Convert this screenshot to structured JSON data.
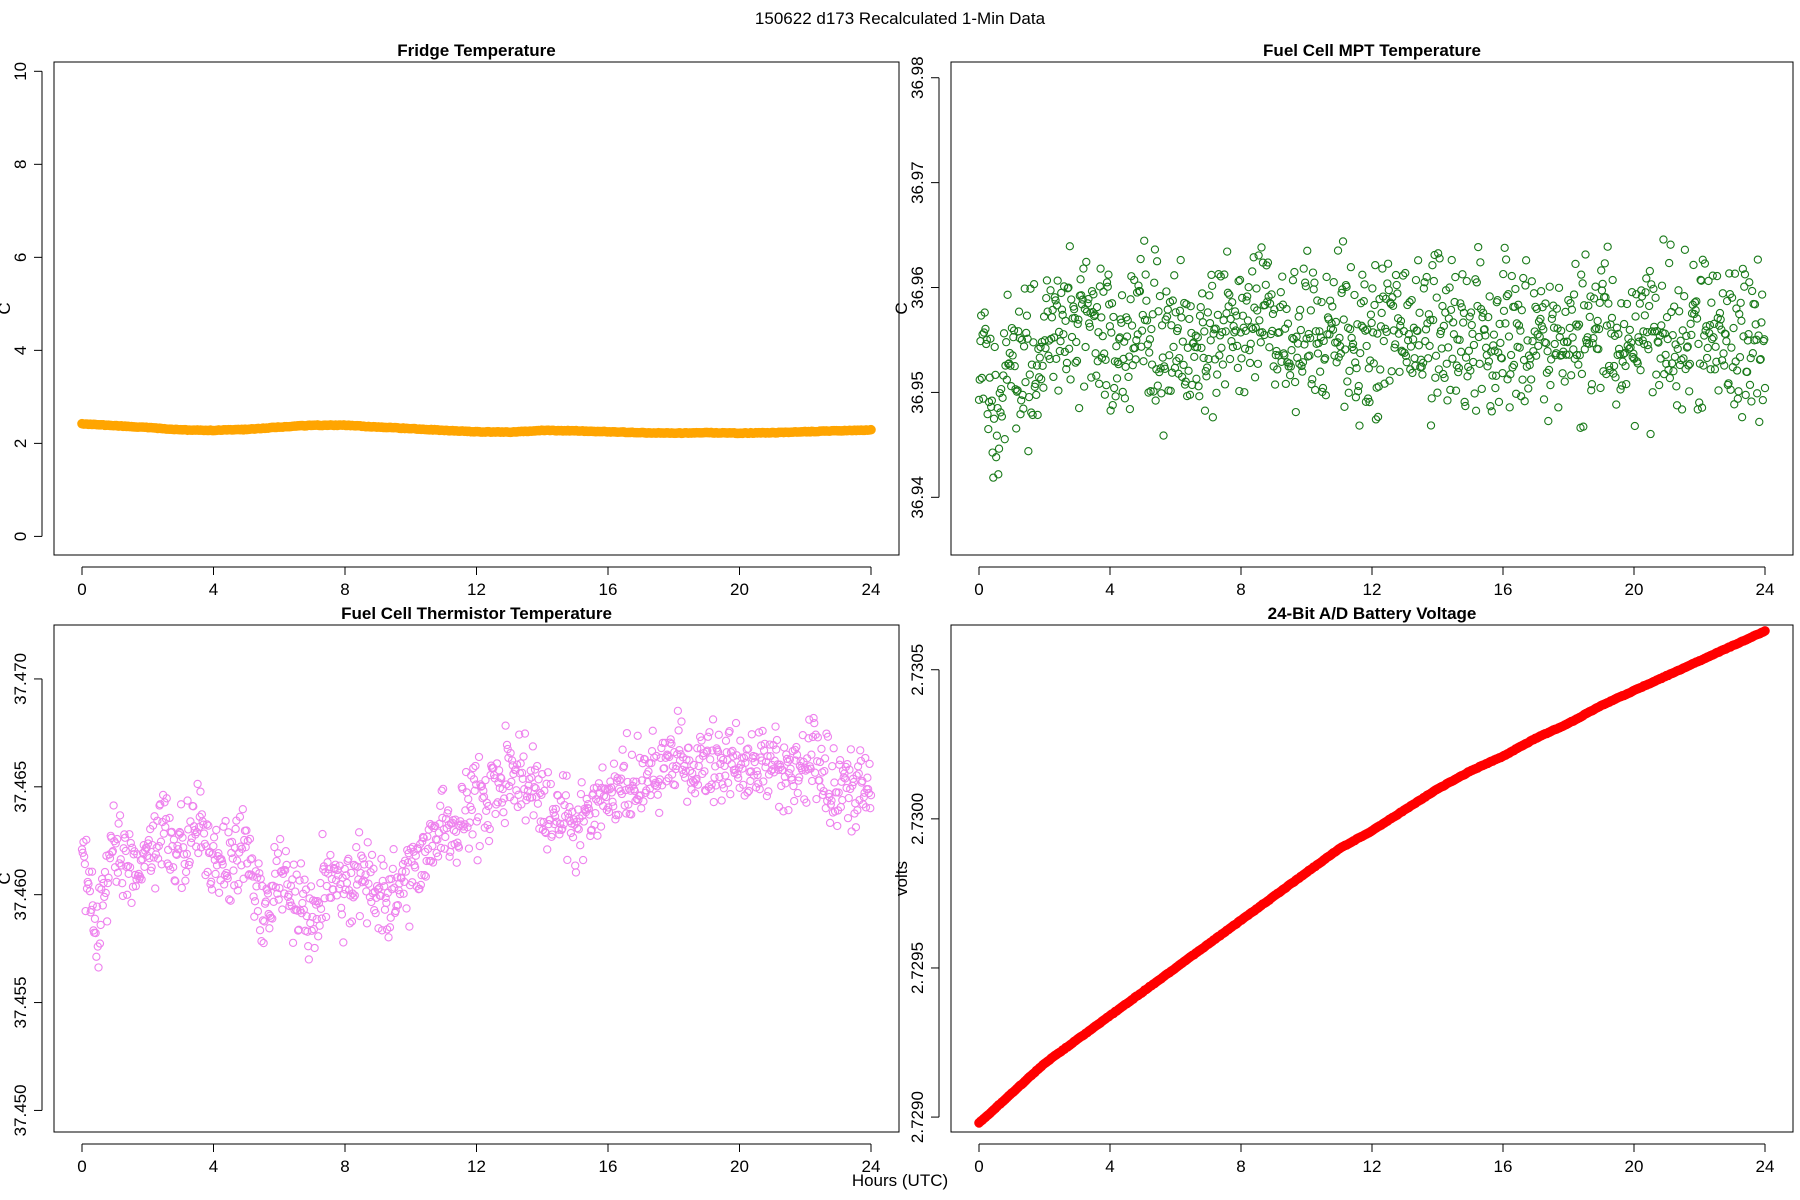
{
  "figure": {
    "title": "150622   d173   Recalculated 1-Min Data",
    "xlabel": "Hours (UTC)"
  },
  "chart_data": [
    {
      "type": "line",
      "title": "Fridge Temperature",
      "xlabel": "",
      "ylabel": "C",
      "xlim": [
        0,
        24
      ],
      "ylim": [
        -0.4,
        10.2
      ],
      "xticks": [
        0,
        4,
        8,
        12,
        16,
        20,
        24
      ],
      "xtick_labels": [
        "0",
        "4",
        "8",
        "12",
        "16",
        "20",
        "24"
      ],
      "yticks": [
        0,
        2,
        4,
        6,
        8,
        10
      ],
      "ytick_labels": [
        "0",
        "2",
        "4",
        "6",
        "8",
        "10"
      ],
      "grid": false,
      "color": "#ffa500",
      "series": [
        {
          "x": [
            0,
            1,
            2,
            3,
            4,
            5,
            6,
            7,
            8,
            9,
            10,
            11,
            12,
            13,
            14,
            15,
            16,
            17,
            18,
            19,
            20,
            21,
            22,
            23,
            24
          ],
          "values": [
            2.42,
            2.38,
            2.34,
            2.29,
            2.28,
            2.3,
            2.35,
            2.39,
            2.39,
            2.35,
            2.32,
            2.28,
            2.25,
            2.24,
            2.28,
            2.27,
            2.25,
            2.23,
            2.22,
            2.23,
            2.22,
            2.23,
            2.25,
            2.27,
            2.29
          ]
        }
      ]
    },
    {
      "type": "scatter",
      "title": "Fuel Cell MPT Temperature",
      "xlabel": "",
      "ylabel": "C",
      "xlim": [
        0,
        24
      ],
      "ylim": [
        36.9345,
        36.9815
      ],
      "xticks": [
        0,
        4,
        8,
        12,
        16,
        20,
        24
      ],
      "xtick_labels": [
        "0",
        "4",
        "8",
        "12",
        "16",
        "20",
        "24"
      ],
      "yticks": [
        36.94,
        36.95,
        36.96,
        36.97,
        36.98
      ],
      "ytick_labels": [
        "36.94",
        "36.95",
        "36.96",
        "36.97",
        "36.98"
      ],
      "grid": false,
      "color": "#1a7a1a",
      "series": [
        {
          "x": [
            0,
            0.5,
            1,
            1.5,
            2,
            2.5,
            3,
            3.5,
            4,
            4.5,
            5,
            5.5,
            6,
            6.5,
            7,
            7.5,
            8,
            8.5,
            9,
            9.5,
            10,
            10.5,
            11,
            11.5,
            12,
            12.5,
            13,
            13.5,
            14,
            14.5,
            15,
            15.5,
            16,
            16.5,
            17,
            17.5,
            18,
            18.5,
            19,
            19.5,
            20,
            20.5,
            21,
            21.5,
            22,
            22.5,
            23,
            23.5,
            24
          ],
          "values": [
            36.952,
            36.95,
            36.951,
            36.953,
            36.955,
            36.956,
            36.957,
            36.956,
            36.955,
            36.956,
            36.957,
            36.955,
            36.956,
            36.955,
            36.956,
            36.955,
            36.956,
            36.957,
            36.956,
            36.955,
            36.956,
            36.955,
            36.956,
            36.955,
            36.956,
            36.955,
            36.956,
            36.955,
            36.956,
            36.955,
            36.956,
            36.955,
            36.956,
            36.955,
            36.956,
            36.955,
            36.956,
            36.955,
            36.956,
            36.955,
            36.956,
            36.955,
            36.956,
            36.955,
            36.956,
            36.955,
            36.956,
            36.955,
            36.956
          ]
        }
      ]
    },
    {
      "type": "scatter",
      "title": "Fuel Cell Thermistor Temperature",
      "xlabel": "",
      "ylabel": "C",
      "xlim": [
        0,
        24
      ],
      "ylim": [
        37.449,
        37.4725
      ],
      "xticks": [
        0,
        4,
        8,
        12,
        16,
        20,
        24
      ],
      "xtick_labels": [
        "0",
        "4",
        "8",
        "12",
        "16",
        "20",
        "24"
      ],
      "yticks": [
        37.45,
        37.455,
        37.46,
        37.465,
        37.47
      ],
      "ytick_labels": [
        "37.450",
        "37.455",
        "37.460",
        "37.465",
        "37.470"
      ],
      "grid": false,
      "color": "#ee82ee",
      "series": [
        {
          "x": [
            0,
            0.5,
            1,
            1.5,
            2,
            2.5,
            3,
            3.5,
            4,
            4.5,
            5,
            5.5,
            6,
            6.5,
            7,
            7.5,
            8,
            8.5,
            9,
            9.5,
            10,
            10.5,
            11,
            11.5,
            12,
            12.5,
            13,
            13.5,
            14,
            14.5,
            15,
            15.5,
            16,
            16.5,
            17,
            17.5,
            18,
            18.5,
            19,
            19.5,
            20,
            20.5,
            21,
            21.5,
            22,
            22.5,
            23,
            23.5,
            24
          ],
          "values": [
            37.462,
            37.458,
            37.463,
            37.461,
            37.462,
            37.463,
            37.462,
            37.463,
            37.462,
            37.461,
            37.462,
            37.459,
            37.461,
            37.46,
            37.459,
            37.461,
            37.46,
            37.461,
            37.46,
            37.46,
            37.461,
            37.462,
            37.463,
            37.463,
            37.464,
            37.465,
            37.466,
            37.465,
            37.464,
            37.464,
            37.463,
            37.464,
            37.464,
            37.465,
            37.465,
            37.466,
            37.466,
            37.466,
            37.466,
            37.466,
            37.466,
            37.466,
            37.466,
            37.466,
            37.466,
            37.466,
            37.465,
            37.465,
            37.465
          ]
        }
      ]
    },
    {
      "type": "line",
      "title": "24-Bit A/D Battery Voltage",
      "xlabel": "",
      "ylabel": "volts",
      "xlim": [
        0,
        24
      ],
      "ylim": [
        2.72895,
        2.73065
      ],
      "xticks": [
        0,
        4,
        8,
        12,
        16,
        20,
        24
      ],
      "xtick_labels": [
        "0",
        "4",
        "8",
        "12",
        "16",
        "20",
        "24"
      ],
      "yticks": [
        2.729,
        2.7295,
        2.73,
        2.7305
      ],
      "ytick_labels": [
        "2.7290",
        "2.7295",
        "2.7300",
        "2.7305"
      ],
      "grid": false,
      "color": "#ff0000",
      "series": [
        {
          "x": [
            0,
            1,
            2,
            3,
            4,
            5,
            6,
            7,
            8,
            9,
            10,
            11,
            12,
            13,
            14,
            15,
            16,
            17,
            18,
            19,
            20,
            21,
            22,
            23,
            24
          ],
          "values": [
            2.72898,
            2.72908,
            2.72918,
            2.72926,
            2.72934,
            2.72942,
            2.7295,
            2.72958,
            2.72966,
            2.72974,
            2.72982,
            2.7299,
            2.72996,
            2.73003,
            2.7301,
            2.73016,
            2.73021,
            2.73027,
            2.73032,
            2.73038,
            2.73043,
            2.73048,
            2.73053,
            2.73058,
            2.73063
          ]
        }
      ]
    }
  ]
}
